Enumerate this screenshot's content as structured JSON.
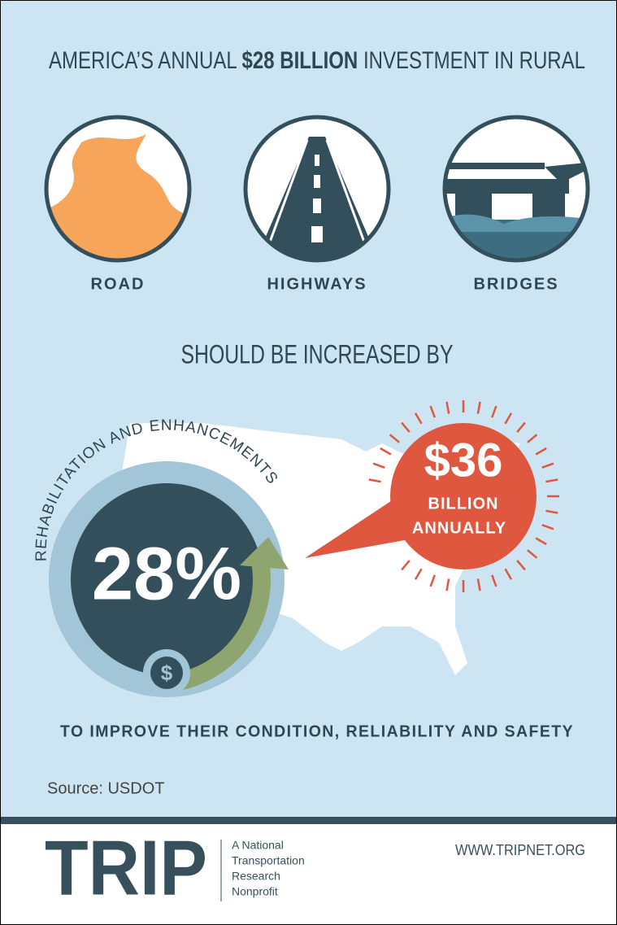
{
  "header": {
    "title_prefix": "AMERICA’S ANNUAL",
    "title_highlight": "$28 BILLION",
    "title_suffix": "INVESTMENT IN RURAL"
  },
  "icons": [
    {
      "label": "ROAD"
    },
    {
      "label": "HIGHWAYS"
    },
    {
      "label": "BRIDGES"
    }
  ],
  "subheading": "SHOULD BE INCREASED BY",
  "ring": {
    "arc_text": "REHABILITATION AND ENHANCEMENTS",
    "percent": "28%",
    "coin_symbol": "$"
  },
  "bubble": {
    "amount": "$36",
    "line1": "BILLION",
    "line2": "ANNUALLY"
  },
  "purpose": "TO IMPROVE THEIR CONDITION, RELIABILITY AND SAFETY",
  "source": "Source: USDOT",
  "footer": {
    "logo": "TRIP",
    "tagline": [
      "A National",
      "Transportation",
      "Research",
      "Nonprofit"
    ],
    "url": "WWW.TRIPNET.ORG"
  }
}
